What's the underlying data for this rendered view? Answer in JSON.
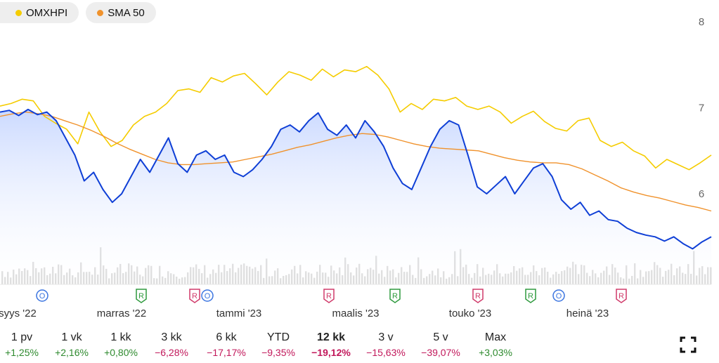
{
  "legend": [
    {
      "label": "OMXHPI",
      "color": "#f5cc00"
    },
    {
      "label": "SMA 50",
      "color": "#f0922c"
    }
  ],
  "colors": {
    "price": "#0f3fd6",
    "fill_top": "#c9d8ff",
    "volume": "#d0d0d0",
    "dividend": "#3a74e0",
    "report": "#2f9a3e",
    "report_alt": "#d03a6a"
  },
  "chart_data": {
    "type": "line",
    "y_ticks": [
      "8",
      "7",
      "6"
    ],
    "ylim": [
      5.1,
      8.2
    ],
    "x_ticks": [
      "syys '22",
      "marras '22",
      "tammi '23",
      "maalis '23",
      "touko '23",
      "heinä '23"
    ],
    "grid": false,
    "legend_position": "top-left",
    "series": [
      {
        "name": "OMXHPI",
        "color": "#f5cc00",
        "values": [
          7.02,
          7.05,
          7.1,
          7.08,
          6.9,
          6.82,
          6.75,
          6.58,
          6.95,
          6.72,
          6.55,
          6.62,
          6.8,
          6.9,
          6.95,
          7.05,
          7.2,
          7.22,
          7.18,
          7.35,
          7.3,
          7.37,
          7.4,
          7.28,
          7.15,
          7.3,
          7.42,
          7.38,
          7.32,
          7.45,
          7.36,
          7.44,
          7.42,
          7.48,
          7.38,
          7.22,
          6.95,
          7.05,
          6.98,
          7.1,
          7.08,
          7.12,
          7.02,
          6.98,
          7.02,
          6.95,
          6.82,
          6.9,
          6.96,
          6.84,
          6.76,
          6.73,
          6.85,
          6.88,
          6.62,
          6.55,
          6.6,
          6.5,
          6.44,
          6.3,
          6.4,
          6.34,
          6.28,
          6.36,
          6.45
        ]
      },
      {
        "name": "SMA 50",
        "color": "#f0922c",
        "values": [
          6.9,
          6.93,
          6.95,
          6.93,
          6.9,
          6.85,
          6.8,
          6.74,
          6.67,
          6.59,
          6.52,
          6.46,
          6.4,
          6.36,
          6.34,
          6.34,
          6.35,
          6.36,
          6.37,
          6.4,
          6.43,
          6.46,
          6.5,
          6.54,
          6.57,
          6.61,
          6.65,
          6.68,
          6.7,
          6.69,
          6.66,
          6.62,
          6.58,
          6.55,
          6.53,
          6.52,
          6.51,
          6.5,
          6.46,
          6.42,
          6.39,
          6.37,
          6.36,
          6.36,
          6.34,
          6.29,
          6.22,
          6.15,
          6.07,
          6.02,
          5.98,
          5.95,
          5.91,
          5.87,
          5.84,
          5.8
        ]
      },
      {
        "name": "",
        "color": "#0f3fd6",
        "values": [
          6.95,
          6.97,
          6.91,
          6.98,
          6.92,
          6.95,
          6.85,
          6.65,
          6.45,
          6.15,
          6.25,
          6.05,
          5.9,
          6.0,
          6.2,
          6.4,
          6.25,
          6.45,
          6.65,
          6.35,
          6.25,
          6.45,
          6.5,
          6.4,
          6.45,
          6.25,
          6.2,
          6.28,
          6.4,
          6.55,
          6.75,
          6.8,
          6.72,
          6.85,
          6.94,
          6.75,
          6.68,
          6.8,
          6.65,
          6.85,
          6.72,
          6.55,
          6.3,
          6.12,
          6.05,
          6.3,
          6.55,
          6.75,
          6.85,
          6.8,
          6.45,
          6.08,
          6.0,
          6.1,
          6.2,
          6.0,
          6.15,
          6.3,
          6.35,
          6.2,
          5.93,
          5.82,
          5.9,
          5.75,
          5.8,
          5.7,
          5.68,
          5.6,
          5.55,
          5.52,
          5.5,
          5.45,
          5.5,
          5.42,
          5.36,
          5.44,
          5.5
        ]
      }
    ],
    "event_markers": [
      "O",
      "R",
      "R",
      "O",
      "R",
      "R",
      "R",
      "R",
      "O",
      "R"
    ],
    "range_selector": [
      {
        "label": "1 pv",
        "change": "+1,25%"
      },
      {
        "label": "1 vk",
        "change": "+2,16%"
      },
      {
        "label": "1 kk",
        "change": "+0,80%"
      },
      {
        "label": "3 kk",
        "change": "−6,28%"
      },
      {
        "label": "6 kk",
        "change": "−17,17%"
      },
      {
        "label": "YTD",
        "change": "−9,35%"
      },
      {
        "label": "12 kk",
        "change": "−19,12%",
        "active": true
      },
      {
        "label": "3 v",
        "change": "−15,63%"
      },
      {
        "label": "5 v",
        "change": "−39,07%"
      },
      {
        "label": "Max",
        "change": "+3,03%"
      }
    ]
  },
  "controls": {
    "fullscreen_icon": "fullscreen-icon"
  }
}
